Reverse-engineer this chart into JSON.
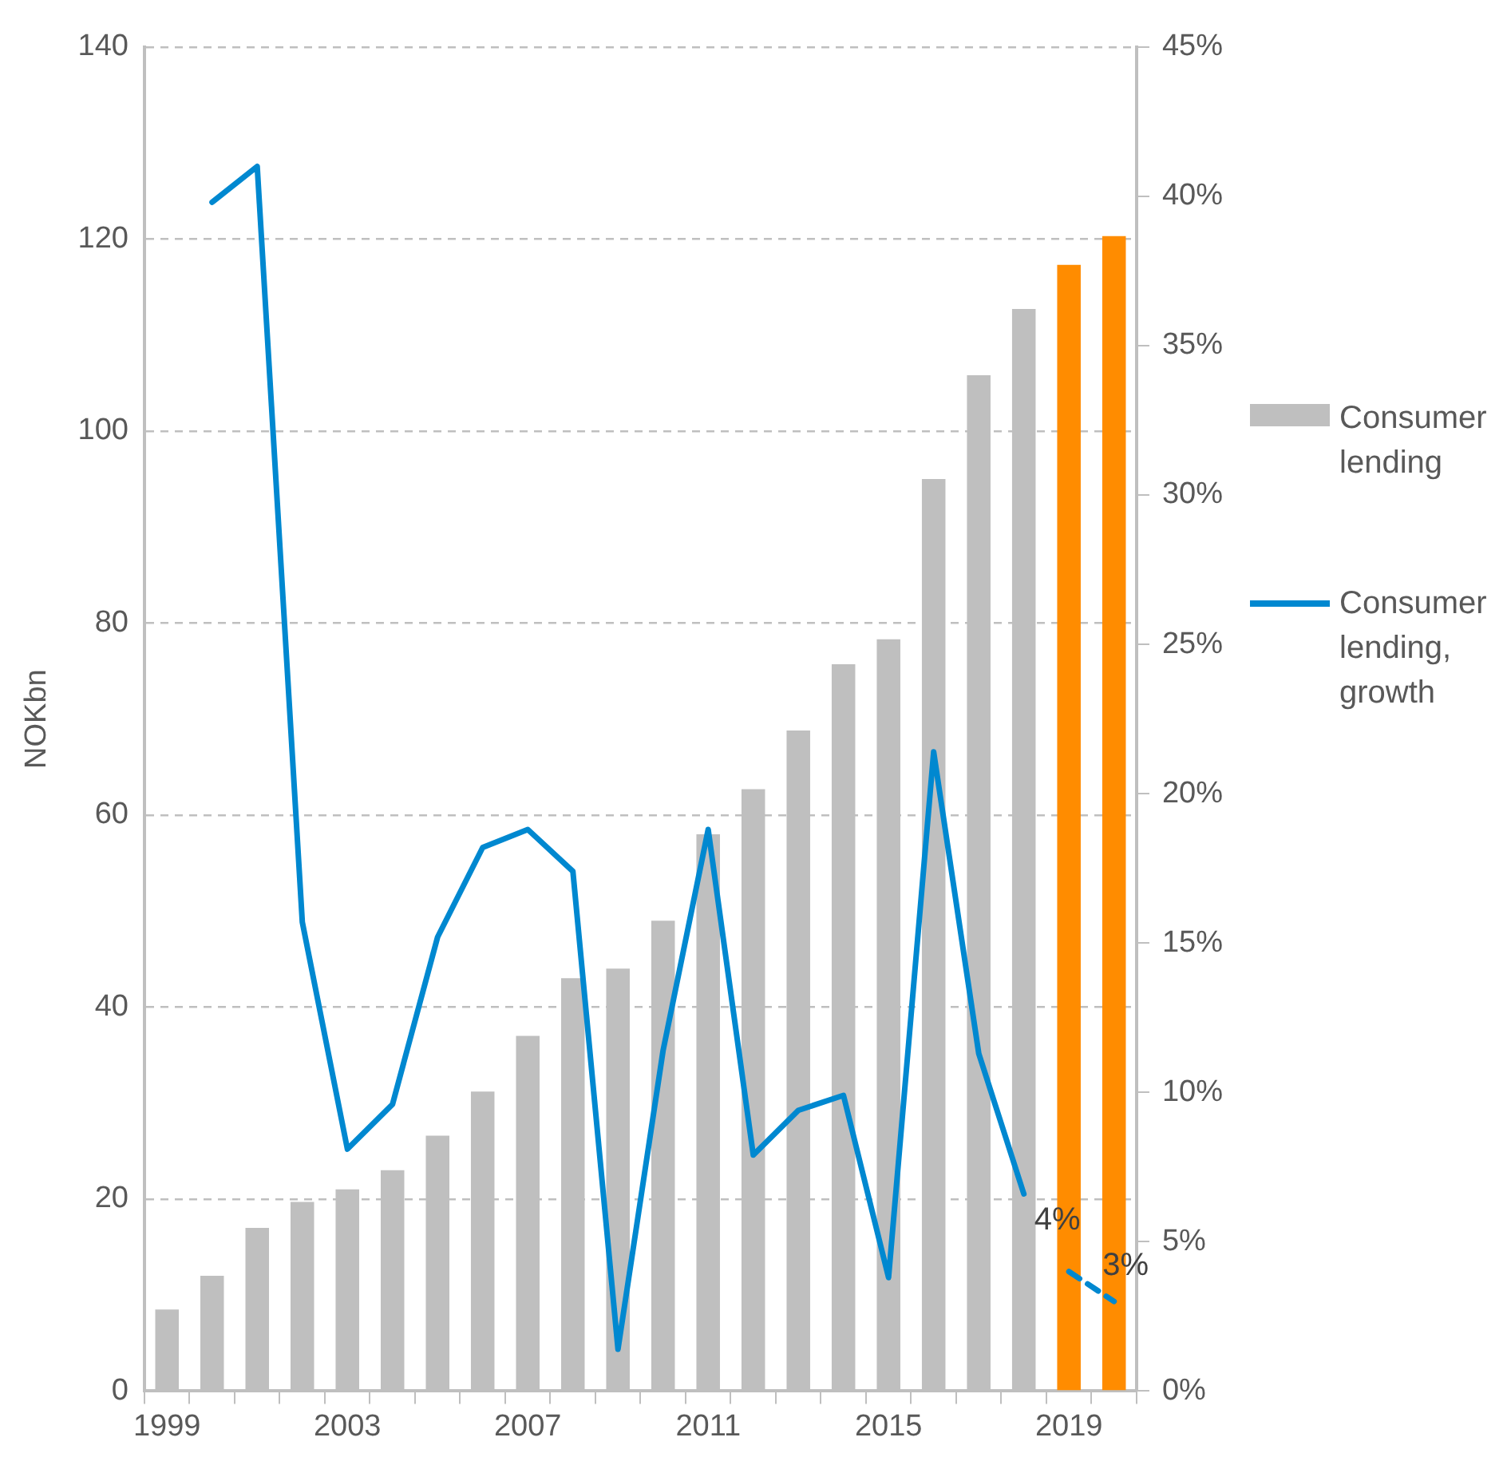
{
  "chart_data": {
    "type": "bar",
    "ylabel": "NOKbn",
    "categories": [
      "1999",
      null,
      null,
      null,
      "2003",
      null,
      null,
      null,
      "2007",
      null,
      null,
      null,
      "2011",
      null,
      null,
      null,
      "2015",
      null,
      null,
      null,
      "2019",
      null
    ],
    "series": [
      {
        "name": "Consumer lending",
        "color": "#bfbfbf",
        "values": [
          8.5,
          12,
          17,
          19.7,
          21,
          23,
          26.6,
          31.2,
          37,
          43,
          44,
          49,
          58,
          62.7,
          68.8,
          75.7,
          78.3,
          95,
          105.8,
          112.7,
          null,
          null
        ]
      },
      {
        "color": "#ff8c00",
        "values": [
          null,
          null,
          null,
          null,
          null,
          null,
          null,
          null,
          null,
          null,
          null,
          null,
          null,
          null,
          null,
          null,
          null,
          null,
          null,
          null,
          117.3,
          120.3
        ]
      },
      {
        "name": "Consumer lending, growth",
        "type": "line",
        "axis": "y2",
        "color": "#0088d0",
        "line_style": "solid",
        "values": [
          null,
          39.8,
          41,
          15.7,
          8.1,
          9.6,
          15.2,
          18.2,
          18.8,
          17.4,
          1.4,
          11.4,
          18.8,
          7.9,
          9.4,
          9.9,
          3.8,
          21.4,
          11.3,
          6.6,
          null,
          null
        ]
      },
      {
        "type": "line",
        "axis": "y2",
        "color": "#0088d0",
        "line_style": "dashed",
        "values": [
          null,
          null,
          null,
          null,
          null,
          null,
          null,
          null,
          null,
          null,
          null,
          null,
          null,
          null,
          null,
          null,
          null,
          null,
          null,
          null,
          4,
          3
        ],
        "value_labels": [
          null,
          null,
          null,
          null,
          null,
          null,
          null,
          null,
          null,
          null,
          null,
          null,
          null,
          null,
          null,
          null,
          null,
          null,
          null,
          null,
          "4%",
          "3%"
        ]
      }
    ],
    "ylim": [
      0,
      140
    ],
    "yticks": [
      0,
      20,
      40,
      60,
      80,
      100,
      120,
      140
    ],
    "y2lim": [
      0,
      45
    ],
    "y2ticks": [
      {
        "value": 0,
        "label": "0%"
      },
      {
        "value": 5,
        "label": "5%"
      },
      {
        "value": 10,
        "label": "10%"
      },
      {
        "value": 15,
        "label": "15%"
      },
      {
        "value": 20,
        "label": "20%"
      },
      {
        "value": 25,
        "label": "25%"
      },
      {
        "value": 30,
        "label": "30%"
      },
      {
        "value": 35,
        "label": "35%"
      },
      {
        "value": 40,
        "label": "40%"
      },
      {
        "value": 45,
        "label": "45%"
      }
    ],
    "grid": "y",
    "legend": "right",
    "marker": "none"
  }
}
